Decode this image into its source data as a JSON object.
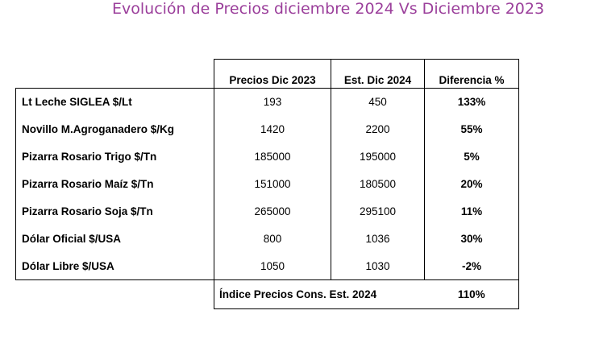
{
  "title": "Evolución de Precios diciembre 2024 Vs Diciembre 2023",
  "table": {
    "headers": {
      "prices_2023": "Precios Dic 2023",
      "est_2024": "Est. Dic 2024",
      "difference": "Diferencia  %"
    },
    "rows": [
      {
        "label": "Lt Leche SIGLEA $/Lt",
        "p2023": "193",
        "p2024": "450",
        "diff": "133%"
      },
      {
        "label": "Novillo M.Agroganadero $/Kg",
        "p2023": "1420",
        "p2024": "2200",
        "diff": "55%"
      },
      {
        "label": "Pizarra  Rosario Trigo $/Tn",
        "p2023": "185000",
        "p2024": "195000",
        "diff": "5%"
      },
      {
        "label": "Pizarra Rosario Maíz $/Tn",
        "p2023": "151000",
        "p2024": "180500",
        "diff": "20%"
      },
      {
        "label": "Pizarra Rosario Soja $/Tn",
        "p2023": "265000",
        "p2024": "295100",
        "diff": "11%"
      },
      {
        "label": "Dólar Oficial $/USA",
        "p2023": "800",
        "p2024": "1036",
        "diff": "30%"
      },
      {
        "label": "Dólar Libre  $/USA",
        "p2023": "1050",
        "p2024": "1030",
        "diff": "-2%"
      }
    ],
    "footer": {
      "label": "Índice Precios Cons.  Est. 2024",
      "value": "110%"
    }
  },
  "colors": {
    "title": "#9b3f9b",
    "text": "#000000",
    "border": "#000000"
  }
}
